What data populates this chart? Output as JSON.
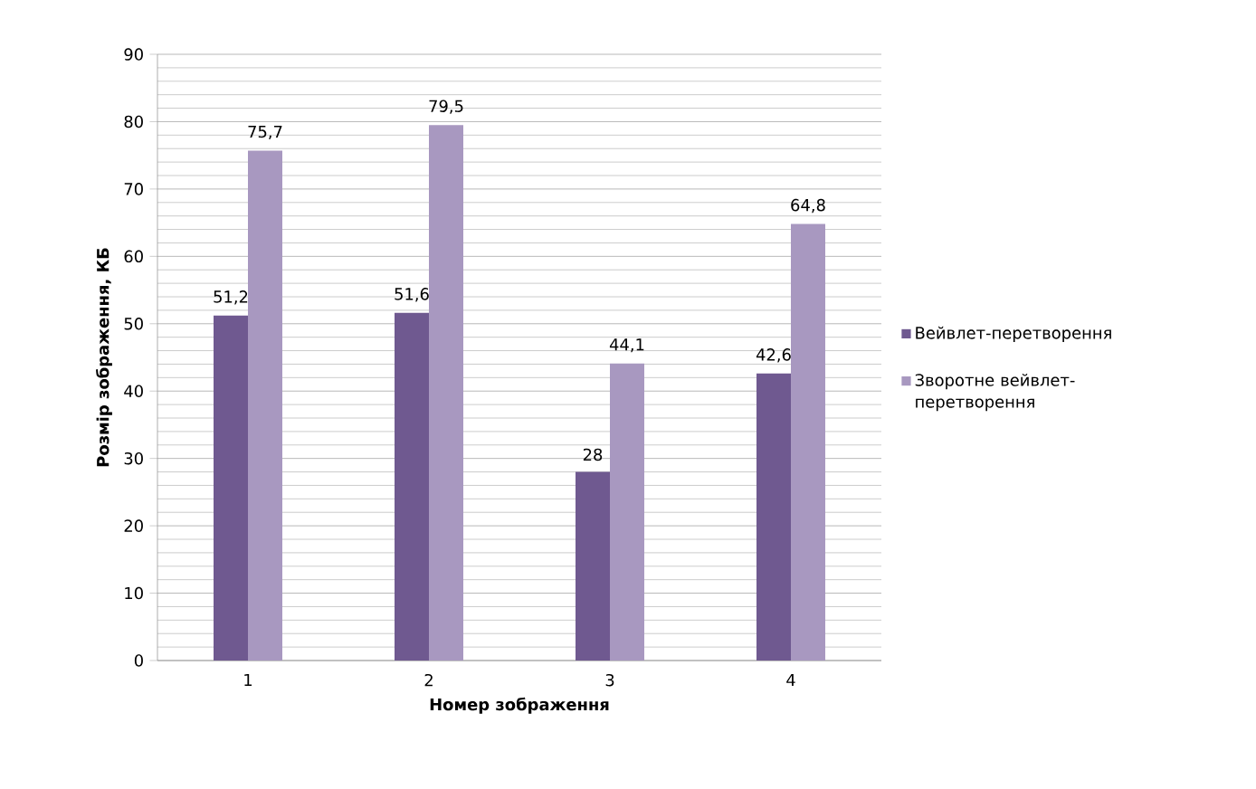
{
  "chart_data": {
    "type": "bar",
    "xlabel": "Номер зображення",
    "ylabel": "Розмір зображення, КБ",
    "categories": [
      "1",
      "2",
      "3",
      "4"
    ],
    "series": [
      {
        "name": "Вейвлет-перетворення",
        "color": "#6f5990",
        "values": [
          51.2,
          51.6,
          28,
          42.6
        ],
        "value_labels": [
          "51,2",
          "51,6",
          "28",
          "42,6"
        ]
      },
      {
        "name": "Зворотне вейвлет-перетворення",
        "color": "#a898c0",
        "values": [
          75.7,
          79.5,
          44.1,
          64.8
        ],
        "value_labels": [
          "75,7",
          "79,5",
          "44,1",
          "64,8"
        ]
      }
    ],
    "ylim": [
      0,
      90
    ],
    "yticks": [
      0,
      10,
      20,
      30,
      40,
      50,
      60,
      70,
      80,
      90
    ],
    "grid": true,
    "legend": "right"
  }
}
